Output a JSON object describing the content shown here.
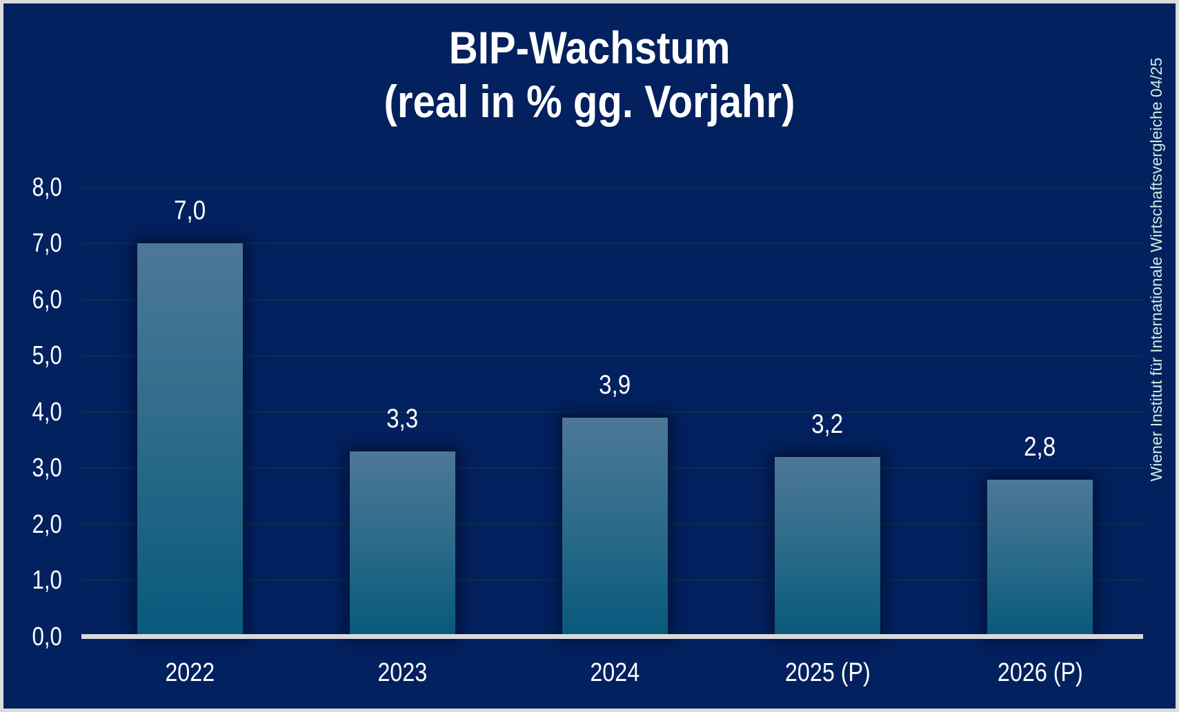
{
  "window": {
    "background_color": "#02215E",
    "frame_border_color": "#DCDCDC"
  },
  "chart_data": {
    "type": "bar",
    "title": "BIP-Wachstum",
    "subtitle": "(real in % gg. Vorjahr)",
    "categories": [
      "2022",
      "2023",
      "2024",
      "2025 (P)",
      "2026 (P)"
    ],
    "values": [
      7.0,
      3.3,
      3.9,
      3.2,
      2.8
    ],
    "value_labels": [
      "7,0",
      "3,3",
      "3,9",
      "3,2",
      "2,8"
    ],
    "ylim": [
      0,
      8
    ],
    "ytick_values": [
      0,
      1,
      2,
      3,
      4,
      5,
      6,
      7,
      8
    ],
    "ytick_labels": [
      "0,0",
      "1,0",
      "2,0",
      "3,0",
      "4,0",
      "5,0",
      "6,0",
      "7,0",
      "8,0"
    ],
    "decimal_style": "comma",
    "grid": true,
    "legend": "none",
    "xlabel": "",
    "ylabel": "",
    "colors": {
      "bar_gradient_top": "#4D7897",
      "bar_gradient_mid": "#2F6C8B",
      "bar_gradient_bottom": "#07597C",
      "axis_line": "#D9D9D9",
      "gridline": "#0A3048",
      "text": "#FFFFFF"
    }
  },
  "source": {
    "text": "Wiener Institut für Internationale Wirtschaftsvergleiche 04/25",
    "color": "#CDEEDD"
  }
}
